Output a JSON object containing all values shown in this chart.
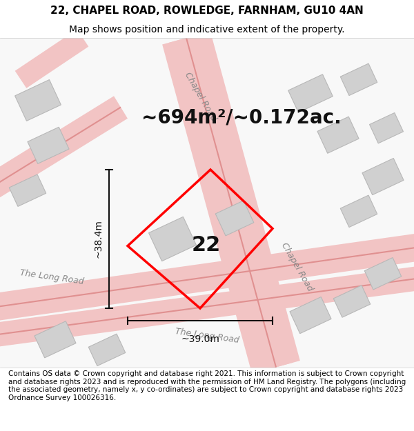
{
  "title": "22, CHAPEL ROAD, ROWLEDGE, FARNHAM, GU10 4AN",
  "subtitle": "Map shows position and indicative extent of the property.",
  "area_label": "~694m²/~0.172ac.",
  "plot_number": "22",
  "width_label": "~39.0m",
  "height_label": "~38.4m",
  "footer": "Contains OS data © Crown copyright and database right 2021. This information is subject to Crown copyright and database rights 2023 and is reproduced with the permission of HM Land Registry. The polygons (including the associated geometry, namely x, y co-ordinates) are subject to Crown copyright and database rights 2023 Ordnance Survey 100026316.",
  "background_color": "#ffffff",
  "map_bg_color": "#f5f5f5",
  "road_color": "#f0c0c0",
  "road_outline_color": "#e08080",
  "building_color": "#d8d8d8",
  "building_outline_color": "#bbbbbb",
  "plot_color": "#ff0000",
  "plot_fill": "none",
  "title_fontsize": 11,
  "subtitle_fontsize": 10,
  "area_fontsize": 20,
  "plot_number_fontsize": 22,
  "road_label_fontsize": 9,
  "footer_fontsize": 7.5
}
